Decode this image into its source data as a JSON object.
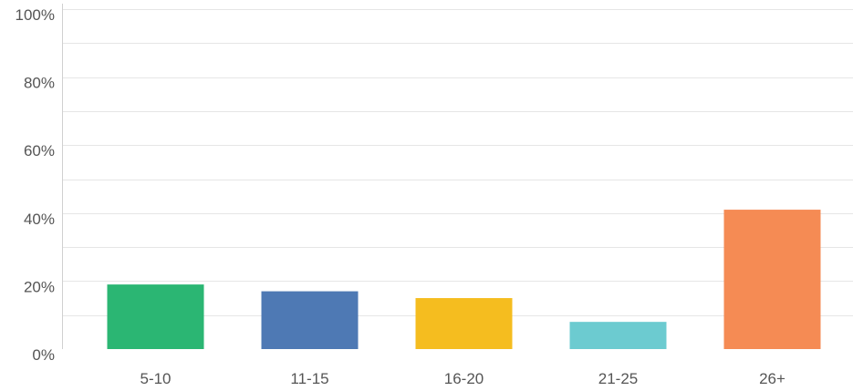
{
  "chart_data": {
    "type": "bar",
    "categories": [
      "5-10",
      "11-15",
      "16-20",
      "21-25",
      "26+"
    ],
    "values": [
      19,
      17,
      15,
      8,
      41
    ],
    "colors": [
      "#2bb673",
      "#4e79b4",
      "#f5bd1f",
      "#6ccbd0",
      "#f58b54"
    ],
    "ylim": [
      0,
      100
    ],
    "y_ticks": [
      "0%",
      "20%",
      "40%",
      "60%",
      "80%",
      "100%"
    ],
    "y_tick_values": [
      0,
      20,
      40,
      60,
      80,
      100
    ],
    "minor_grid_values": [
      10,
      30,
      50,
      70,
      90
    ],
    "grid": true,
    "title": "",
    "xlabel": "",
    "ylabel": ""
  }
}
